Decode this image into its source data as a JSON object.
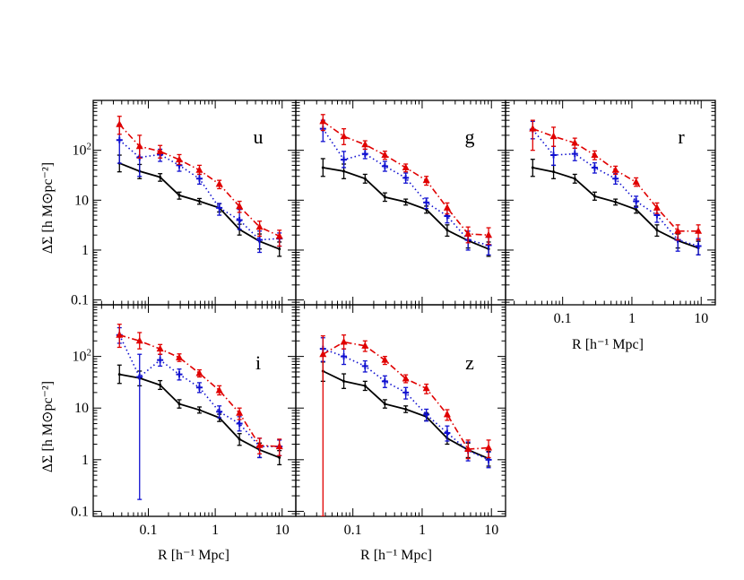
{
  "figure": {
    "ylabel": "ΔΣ [h M⊙pc⁻²]",
    "xlabel": "R [h⁻¹ Mpc]",
    "x_tick_labels": [
      "0.1",
      "1",
      "10"
    ],
    "y_tick_labels": [
      "0.1",
      "1",
      "10",
      "10²"
    ]
  },
  "chart_data": [
    {
      "type": "line",
      "panel": "u",
      "xscale": "log",
      "yscale": "log",
      "xlim": [
        0.015,
        16
      ],
      "ylim": [
        0.08,
        1000
      ],
      "series": [
        {
          "color": "#000000",
          "style": "solid",
          "marker": "none",
          "x": [
            0.037,
            0.074,
            0.15,
            0.29,
            0.58,
            1.15,
            2.3,
            4.6,
            9.1
          ],
          "y": [
            55,
            38,
            29,
            12.5,
            9.5,
            7,
            2.6,
            1.5,
            1.05
          ],
          "err_low": [
            37,
            27,
            24,
            10.5,
            8.3,
            5.8,
            2.0,
            1.05,
            0.75
          ],
          "err_high": [
            80,
            52,
            34,
            14.5,
            10.8,
            8.5,
            3.3,
            2.1,
            1.45
          ]
        },
        {
          "color": "#1010d0",
          "style": "dotted",
          "marker": "plus",
          "x": [
            0.037,
            0.074,
            0.15,
            0.29,
            0.58,
            1.15,
            2.3,
            4.6,
            9.1
          ],
          "y": [
            160,
            72,
            82,
            50,
            27,
            7,
            4,
            1.6,
            1.7
          ],
          "err_low": [
            55,
            30,
            60,
            38,
            21,
            5,
            2.6,
            0.9,
            1.2
          ],
          "err_high": [
            330,
            110,
            105,
            63,
            33,
            8.6,
            6.5,
            2.4,
            2.2
          ]
        },
        {
          "color": "#e00000",
          "style": "dashdot",
          "marker": "triangle",
          "x": [
            0.037,
            0.074,
            0.15,
            0.29,
            0.58,
            1.15,
            2.3,
            4.6,
            9.1
          ],
          "y": [
            330,
            120,
            95,
            65,
            40,
            21,
            7.5,
            2.9,
            1.9
          ],
          "err_low": [
            210,
            70,
            70,
            52,
            33,
            17,
            5.7,
            1.9,
            1.2
          ],
          "err_high": [
            480,
            200,
            125,
            82,
            50,
            25,
            9.5,
            3.8,
            2.5
          ]
        }
      ]
    },
    {
      "type": "line",
      "panel": "g",
      "xscale": "log",
      "yscale": "log",
      "xlim": [
        0.015,
        16
      ],
      "ylim": [
        0.08,
        1000
      ],
      "series": [
        {
          "color": "#000000",
          "style": "solid",
          "marker": "none",
          "x": [
            0.037,
            0.074,
            0.15,
            0.29,
            0.58,
            1.15,
            2.3,
            4.6,
            9.1
          ],
          "y": [
            45,
            38,
            27,
            11.5,
            9.2,
            6.5,
            2.5,
            1.55,
            1.05
          ],
          "err_low": [
            30,
            27,
            22,
            9.5,
            8,
            5.5,
            1.9,
            1.1,
            0.75
          ],
          "err_high": [
            68,
            53,
            33,
            14,
            10.5,
            7.6,
            3.2,
            2.1,
            1.45
          ]
        },
        {
          "color": "#1010d0",
          "style": "dotted",
          "marker": "plus",
          "x": [
            0.037,
            0.074,
            0.15,
            0.29,
            0.58,
            1.15,
            2.3,
            4.6,
            9.1
          ],
          "y": [
            270,
            65,
            85,
            48,
            28,
            9,
            4.8,
            1.6,
            1.25
          ],
          "err_low": [
            150,
            45,
            68,
            38,
            22,
            6.8,
            3.5,
            1.0,
            0.8
          ],
          "err_high": [
            400,
            95,
            105,
            60,
            35,
            11,
            6.5,
            2.4,
            1.8
          ]
        },
        {
          "color": "#e00000",
          "style": "dashdot",
          "marker": "triangle",
          "x": [
            0.037,
            0.074,
            0.15,
            0.29,
            0.58,
            1.15,
            2.3,
            4.6,
            9.1
          ],
          "y": [
            380,
            190,
            130,
            80,
            45,
            25,
            7,
            2.1,
            2.0
          ],
          "err_low": [
            250,
            130,
            105,
            66,
            37,
            20,
            5.3,
            1.4,
            1.3
          ],
          "err_high": [
            520,
            270,
            155,
            96,
            53,
            30,
            8.8,
            2.9,
            2.8
          ]
        }
      ]
    },
    {
      "type": "line",
      "panel": "r",
      "xscale": "log",
      "yscale": "log",
      "xlim": [
        0.015,
        16
      ],
      "ylim": [
        0.08,
        1000
      ],
      "series": [
        {
          "color": "#000000",
          "style": "solid",
          "marker": "none",
          "x": [
            0.037,
            0.074,
            0.15,
            0.29,
            0.58,
            1.15,
            2.3,
            4.6,
            9.1
          ],
          "y": [
            45,
            37,
            27,
            12,
            9.2,
            6.5,
            2.5,
            1.55,
            1.1
          ],
          "err_low": [
            30,
            27,
            22,
            10,
            8,
            5.5,
            1.9,
            1.1,
            0.8
          ],
          "err_high": [
            66,
            50,
            33,
            14.5,
            10.5,
            7.6,
            3.2,
            2.1,
            1.5
          ]
        },
        {
          "color": "#1010d0",
          "style": "dotted",
          "marker": "plus",
          "x": [
            0.037,
            0.074,
            0.15,
            0.29,
            0.58,
            1.15,
            2.3,
            4.6,
            9.1
          ],
          "y": [
            260,
            80,
            85,
            45,
            27,
            9.5,
            5,
            1.6,
            1.2
          ],
          "err_low": [
            170,
            50,
            62,
            35,
            21,
            7.2,
            3.6,
            0.95,
            0.8
          ],
          "err_high": [
            380,
            120,
            110,
            56,
            34,
            12,
            6.8,
            2.4,
            1.7
          ]
        },
        {
          "color": "#e00000",
          "style": "dashdot",
          "marker": "triangle",
          "x": [
            0.037,
            0.074,
            0.15,
            0.29,
            0.58,
            1.15,
            2.3,
            4.6,
            9.1
          ],
          "y": [
            270,
            190,
            140,
            80,
            40,
            23,
            7,
            2.4,
            2.4
          ],
          "err_low": [
            100,
            120,
            110,
            65,
            33,
            19,
            5.4,
            1.6,
            1.6
          ],
          "err_high": [
            400,
            290,
            175,
            97,
            48,
            28,
            8.8,
            3.2,
            3.2
          ]
        }
      ]
    },
    {
      "type": "line",
      "panel": "i",
      "xscale": "log",
      "yscale": "log",
      "xlim": [
        0.015,
        16
      ],
      "ylim": [
        0.08,
        1000
      ],
      "series": [
        {
          "color": "#000000",
          "style": "solid",
          "marker": "none",
          "x": [
            0.037,
            0.074,
            0.15,
            0.29,
            0.58,
            1.15,
            2.3,
            4.6,
            9.1
          ],
          "y": [
            45,
            38,
            28,
            12,
            9.2,
            6.5,
            2.5,
            1.55,
            1.1
          ],
          "err_low": [
            30,
            27,
            23,
            10,
            8,
            5.5,
            1.9,
            1.1,
            0.8
          ],
          "err_high": [
            68,
            52,
            34,
            14.5,
            10.5,
            7.6,
            3.2,
            2.1,
            1.5
          ]
        },
        {
          "color": "#1010d0",
          "style": "dotted",
          "marker": "plus",
          "x": [
            0.037,
            0.074,
            0.15,
            0.29,
            0.58,
            1.15,
            2.3,
            4.6,
            9.1
          ],
          "y": [
            260,
            40,
            85,
            45,
            25,
            8.5,
            5,
            1.8,
            1.8
          ],
          "err_low": [
            180,
            0.17,
            65,
            35,
            20,
            6.5,
            3.6,
            1.1,
            1.2
          ],
          "err_high": [
            360,
            110,
            110,
            57,
            31,
            11,
            6.8,
            2.6,
            2.4
          ]
        },
        {
          "color": "#e00000",
          "style": "dashdot",
          "marker": "triangle",
          "x": [
            0.037,
            0.074,
            0.15,
            0.29,
            0.58,
            1.15,
            2.3,
            4.6,
            9.1
          ],
          "y": [
            260,
            200,
            140,
            95,
            47,
            22,
            8,
            1.9,
            1.8
          ],
          "err_low": [
            150,
            140,
            110,
            80,
            40,
            18,
            6,
            1.3,
            1.2
          ],
          "err_high": [
            420,
            290,
            170,
            112,
            55,
            27,
            10,
            2.6,
            2.5
          ]
        }
      ]
    },
    {
      "type": "line",
      "panel": "z",
      "xscale": "log",
      "yscale": "log",
      "xlim": [
        0.015,
        16
      ],
      "ylim": [
        0.08,
        1000
      ],
      "series": [
        {
          "color": "#000000",
          "style": "solid",
          "marker": "none",
          "x": [
            0.037,
            0.074,
            0.15,
            0.29,
            0.58,
            1.15,
            2.3,
            4.6,
            9.1
          ],
          "y": [
            52,
            33,
            27,
            12,
            9.5,
            6.8,
            2.6,
            1.55,
            1.05
          ],
          "err_low": [
            33,
            24,
            22,
            10,
            8.2,
            5.7,
            2.0,
            1.1,
            0.75
          ],
          "err_high": [
            78,
            46,
            33,
            14.5,
            11,
            8,
            3.3,
            2.1,
            1.45
          ]
        },
        {
          "color": "#1010d0",
          "style": "dotted",
          "marker": "plus",
          "x": [
            0.037,
            0.074,
            0.15,
            0.29,
            0.58,
            1.15,
            2.3,
            4.6,
            9.1
          ],
          "y": [
            140,
            100,
            65,
            33,
            20,
            7.5,
            3.3,
            1.5,
            1.0
          ],
          "err_low": [
            80,
            70,
            50,
            25,
            15,
            5.6,
            2.3,
            0.95,
            0.7
          ],
          "err_high": [
            230,
            140,
            82,
            42,
            25,
            9.5,
            4.5,
            2.2,
            1.4
          ]
        },
        {
          "color": "#e00000",
          "style": "dashdot",
          "marker": "triangle",
          "x": [
            0.037,
            0.074,
            0.15,
            0.29,
            0.58,
            1.15,
            2.3,
            4.6,
            9.1
          ],
          "y": [
            110,
            190,
            160,
            85,
            37,
            24,
            7.5,
            1.6,
            1.7
          ],
          "err_low": [
            0.08,
            140,
            125,
            70,
            31,
            19,
            5.8,
            1.05,
            1.1
          ],
          "err_high": [
            250,
            260,
            200,
            100,
            44,
            29,
            9.3,
            2.4,
            2.4
          ]
        }
      ]
    }
  ]
}
